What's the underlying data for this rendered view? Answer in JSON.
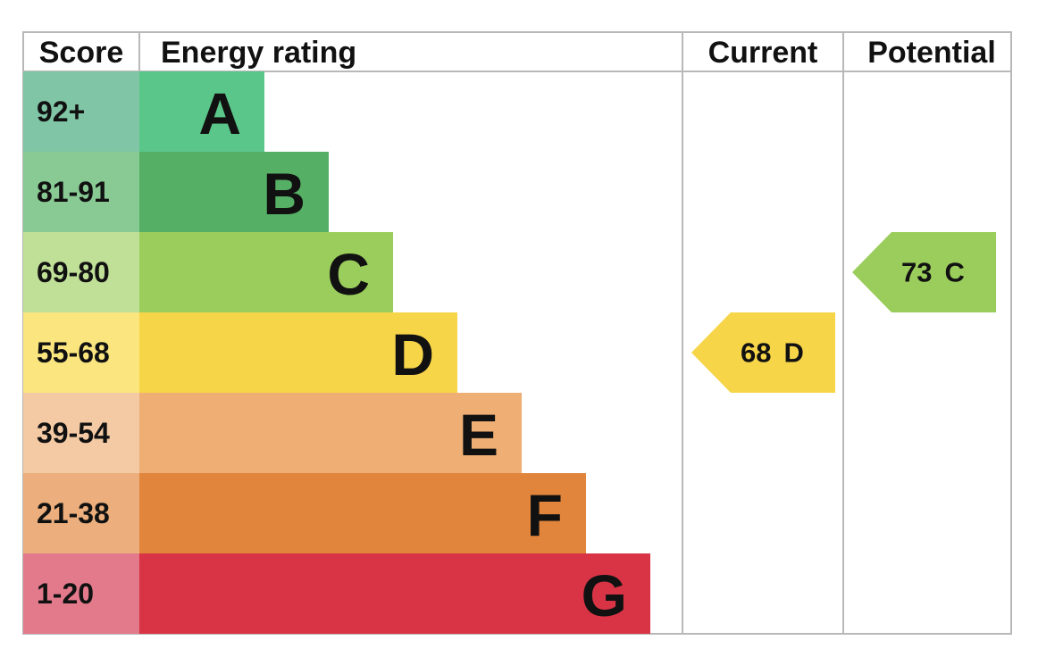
{
  "header": {
    "score": "Score",
    "rating": "Energy rating",
    "current": "Current",
    "potential": "Potential"
  },
  "bands": [
    {
      "score": "92+",
      "letter": "A",
      "bar_color": "#5bc68a",
      "score_color": "#80c6a6"
    },
    {
      "score": "81-91",
      "letter": "B",
      "bar_color": "#55b065",
      "score_color": "#88c994"
    },
    {
      "score": "69-80",
      "letter": "C",
      "bar_color": "#9bcd5c",
      "score_color": "#c0e098"
    },
    {
      "score": "55-68",
      "letter": "D",
      "bar_color": "#f7d549",
      "score_color": "#fae57f"
    },
    {
      "score": "39-54",
      "letter": "E",
      "bar_color": "#eeae74",
      "score_color": "#f4caa4"
    },
    {
      "score": "21-38",
      "letter": "F",
      "bar_color": "#e1853d",
      "score_color": "#ebae7c"
    },
    {
      "score": "1-20",
      "letter": "G",
      "bar_color": "#d83445",
      "score_color": "#e37a8c"
    }
  ],
  "current": {
    "score": 68,
    "rating": "D"
  },
  "potential": {
    "score": 73,
    "rating": "C"
  }
}
